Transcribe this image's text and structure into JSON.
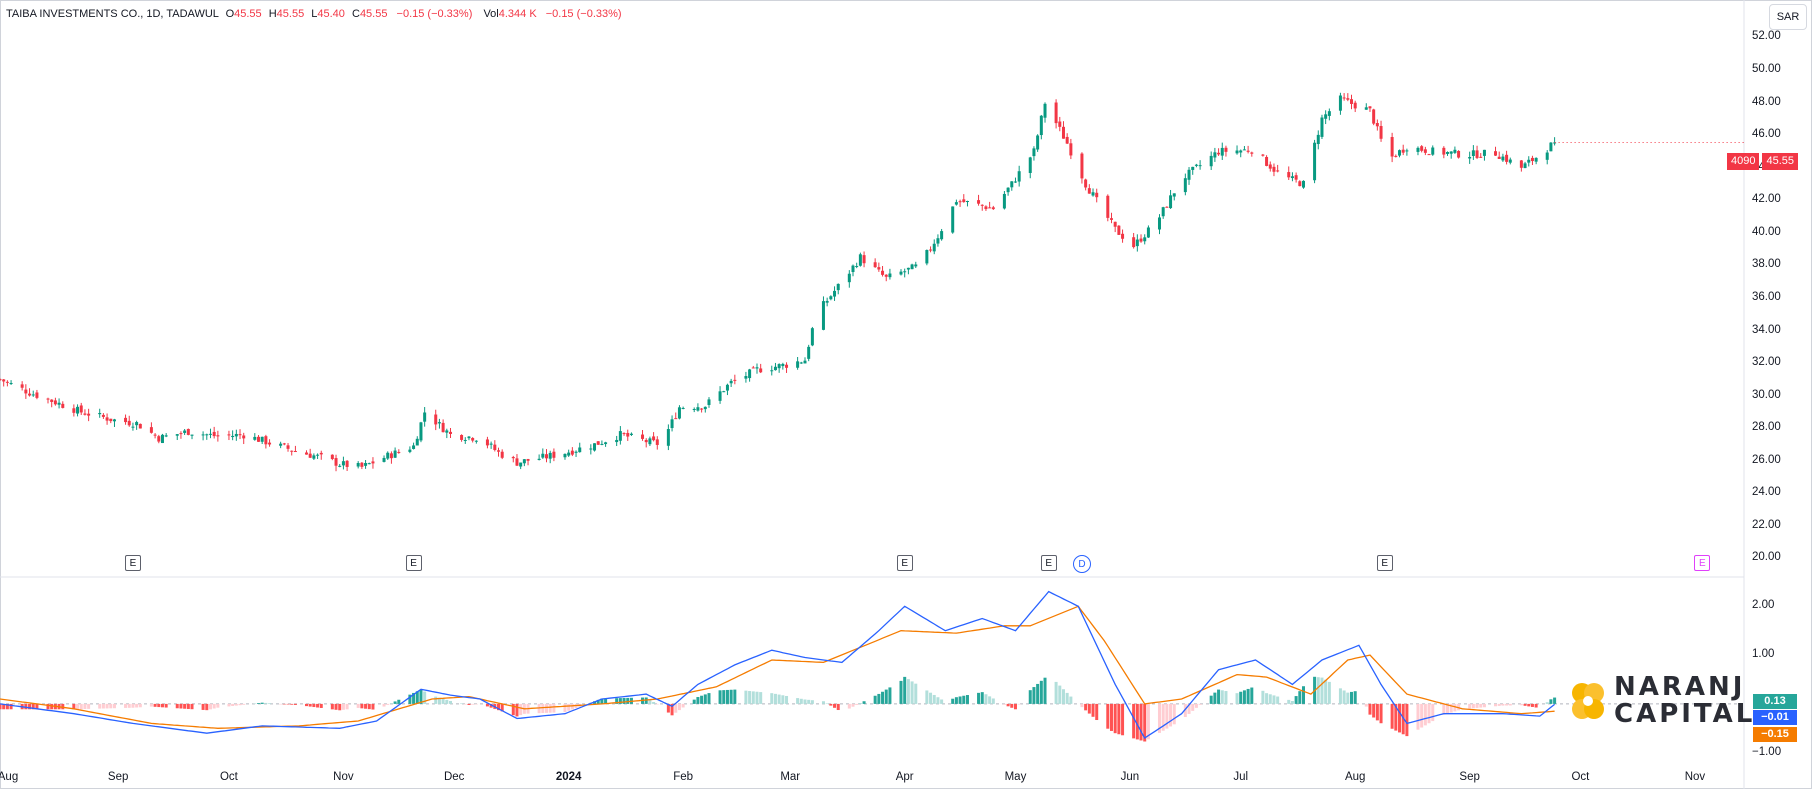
{
  "legend": {
    "name": "TAIBA INVESTMENTS CO., 1D, TADAWUL",
    "open_label": "O",
    "open": "45.55",
    "high_label": "H",
    "high": "45.55",
    "low_label": "L",
    "low": "45.40",
    "close_label": "C",
    "close": "45.55",
    "change": "−0.15 (−0.33%)",
    "vol_label": "Vol",
    "vol": "4.344 K",
    "vol_change": "−0.15 (−0.33%)"
  },
  "currency": "SAR",
  "price_tag": {
    "symbol": "4090",
    "price": "45.55"
  },
  "macd_tags": {
    "hist": "0.13",
    "macd": "−0.01",
    "signal": "−0.15"
  },
  "logo": {
    "line1": "NARANJ",
    "line2": "CAPITAL"
  },
  "events": [
    {
      "label": "E",
      "date": "2023-09-05"
    },
    {
      "label": "E",
      "date": "2023-11-20"
    },
    {
      "label": "E",
      "date": "2024-04-01"
    },
    {
      "label": "E",
      "date": "2024-05-10"
    },
    {
      "label": "D",
      "date": "2024-05-19"
    },
    {
      "label": "E",
      "date": "2024-08-09"
    },
    {
      "label": "E",
      "date": "2024-11-03"
    }
  ],
  "colors": {
    "up": "#089981",
    "down": "#f23645",
    "macd": "#2962ff",
    "signal": "#f57c00",
    "hist_up": "#26a69a",
    "hist_up_weak": "#b2dfdb",
    "hist_down": "#ff5252",
    "hist_down_weak": "#ffcdd2"
  },
  "chart_data": [
    {
      "type": "candlestick",
      "title": "TAIBA INVESTMENTS CO., 1D, TADAWUL",
      "y_ticks": [
        "20.00",
        "22.00",
        "24.00",
        "26.00",
        "28.00",
        "30.00",
        "32.00",
        "34.00",
        "36.00",
        "38.00",
        "40.00",
        "42.00",
        "44.00",
        "46.00",
        "48.00",
        "50.00",
        "52.00"
      ],
      "ylim": [
        19.6,
        54.3
      ],
      "x_ticks": [
        {
          "label": "Aug",
          "date": "2023-08-01"
        },
        {
          "label": "Sep",
          "date": "2023-09-01"
        },
        {
          "label": "Oct",
          "date": "2023-10-01"
        },
        {
          "label": "Nov",
          "date": "2023-11-01"
        },
        {
          "label": "Dec",
          "date": "2023-12-01"
        },
        {
          "label": "2024",
          "date": "2024-01-01",
          "bold": true
        },
        {
          "label": "Feb",
          "date": "2024-02-01"
        },
        {
          "label": "Mar",
          "date": "2024-03-01"
        },
        {
          "label": "Apr",
          "date": "2024-04-01"
        },
        {
          "label": "May",
          "date": "2024-05-01"
        },
        {
          "label": "Jun",
          "date": "2024-06-01"
        },
        {
          "label": "Jul",
          "date": "2024-07-01"
        },
        {
          "label": "Aug",
          "date": "2024-08-01"
        },
        {
          "label": "Sep",
          "date": "2024-09-01"
        },
        {
          "label": "Oct",
          "date": "2024-10-01"
        },
        {
          "label": "Nov",
          "date": "2024-11-01"
        }
      ],
      "xlim": [
        "2023-07-31",
        "2024-11-04"
      ],
      "close_path": [
        [
          "2023-07-31",
          31.0
        ],
        [
          "2023-08-08",
          30.2
        ],
        [
          "2023-08-15",
          29.6
        ],
        [
          "2023-08-22",
          29.0
        ],
        [
          "2023-08-31",
          28.5
        ],
        [
          "2023-09-06",
          28.3
        ],
        [
          "2023-09-12",
          27.4
        ],
        [
          "2023-09-20",
          27.8
        ],
        [
          "2023-09-28",
          27.5
        ],
        [
          "2023-10-05",
          27.6
        ],
        [
          "2023-10-12",
          27.1
        ],
        [
          "2023-10-19",
          26.6
        ],
        [
          "2023-10-26",
          26.2
        ],
        [
          "2023-10-31",
          25.8
        ],
        [
          "2023-11-06",
          25.6
        ],
        [
          "2023-11-13",
          26.3
        ],
        [
          "2023-11-20",
          26.9
        ],
        [
          "2023-11-23",
          29.0
        ],
        [
          "2023-11-30",
          27.6
        ],
        [
          "2023-12-08",
          27.4
        ],
        [
          "2023-12-13",
          26.5
        ],
        [
          "2023-12-18",
          25.9
        ],
        [
          "2023-12-25",
          26.2
        ],
        [
          "2023-12-31",
          26.5
        ],
        [
          "2024-01-08",
          27.0
        ],
        [
          "2024-01-15",
          27.6
        ],
        [
          "2024-01-22",
          27.2
        ],
        [
          "2024-01-26",
          27.0
        ],
        [
          "2024-01-31",
          29.3
        ],
        [
          "2024-02-07",
          29.4
        ],
        [
          "2024-02-14",
          30.8
        ],
        [
          "2024-02-21",
          31.6
        ],
        [
          "2024-02-29",
          31.9
        ],
        [
          "2024-03-05",
          32.2
        ],
        [
          "2024-03-08",
          35.0
        ],
        [
          "2024-03-15",
          37.0
        ],
        [
          "2024-03-20",
          38.5
        ],
        [
          "2024-03-27",
          37.2
        ],
        [
          "2024-04-05",
          38.0
        ],
        [
          "2024-04-10",
          39.8
        ],
        [
          "2024-04-15",
          42.0
        ],
        [
          "2024-04-25",
          41.5
        ],
        [
          "2024-04-30",
          43.0
        ],
        [
          "2024-05-06",
          45.0
        ],
        [
          "2024-05-09",
          48.0
        ],
        [
          "2024-05-15",
          45.5
        ],
        [
          "2024-05-20",
          43.0
        ],
        [
          "2024-05-28",
          40.2
        ],
        [
          "2024-06-02",
          39.2
        ],
        [
          "2024-06-08",
          40.6
        ],
        [
          "2024-06-15",
          43.3
        ],
        [
          "2024-06-25",
          45.0
        ],
        [
          "2024-07-04",
          45.1
        ],
        [
          "2024-07-12",
          43.5
        ],
        [
          "2024-07-18",
          43.0
        ],
        [
          "2024-07-23",
          47.0
        ],
        [
          "2024-07-28",
          48.2
        ],
        [
          "2024-08-05",
          47.5
        ],
        [
          "2024-08-10",
          44.5
        ],
        [
          "2024-08-15",
          45.3
        ],
        [
          "2024-08-22",
          45.0
        ],
        [
          "2024-08-31",
          44.8
        ],
        [
          "2024-09-08",
          44.9
        ],
        [
          "2024-09-15",
          44.0
        ],
        [
          "2024-09-20",
          44.8
        ],
        [
          "2024-09-24",
          45.55
        ]
      ],
      "last_close": 45.55
    },
    {
      "type": "macd",
      "y_ticks": [
        "−1.00",
        "1.00",
        "2.00"
      ],
      "ylim": [
        -1.6,
        2.6
      ],
      "macd_path": [
        [
          "2023-07-31",
          0.0
        ],
        [
          "2023-08-20",
          -0.2
        ],
        [
          "2023-09-05",
          -0.4
        ],
        [
          "2023-09-25",
          -0.6
        ],
        [
          "2023-10-10",
          -0.45
        ],
        [
          "2023-10-31",
          -0.5
        ],
        [
          "2023-11-10",
          -0.35
        ],
        [
          "2023-11-22",
          0.3
        ],
        [
          "2023-11-30",
          0.18
        ],
        [
          "2023-12-08",
          0.1
        ],
        [
          "2023-12-18",
          -0.3
        ],
        [
          "2023-12-31",
          -0.2
        ],
        [
          "2024-01-10",
          0.1
        ],
        [
          "2024-01-22",
          0.2
        ],
        [
          "2024-01-29",
          -0.05
        ],
        [
          "2024-02-05",
          0.4
        ],
        [
          "2024-02-15",
          0.8
        ],
        [
          "2024-02-25",
          1.1
        ],
        [
          "2024-03-05",
          0.95
        ],
        [
          "2024-03-15",
          0.85
        ],
        [
          "2024-03-25",
          1.5
        ],
        [
          "2024-04-01",
          2.0
        ],
        [
          "2024-04-12",
          1.5
        ],
        [
          "2024-04-22",
          1.75
        ],
        [
          "2024-05-01",
          1.5
        ],
        [
          "2024-05-10",
          2.3
        ],
        [
          "2024-05-18",
          2.0
        ],
        [
          "2024-05-28",
          0.4
        ],
        [
          "2024-06-05",
          -0.7
        ],
        [
          "2024-06-15",
          -0.2
        ],
        [
          "2024-06-25",
          0.7
        ],
        [
          "2024-07-05",
          0.9
        ],
        [
          "2024-07-15",
          0.4
        ],
        [
          "2024-07-23",
          0.9
        ],
        [
          "2024-08-02",
          1.2
        ],
        [
          "2024-08-08",
          0.4
        ],
        [
          "2024-08-15",
          -0.4
        ],
        [
          "2024-08-25",
          -0.2
        ],
        [
          "2024-09-10",
          -0.2
        ],
        [
          "2024-09-20",
          -0.25
        ],
        [
          "2024-09-24",
          -0.01
        ]
      ],
      "signal_path": [
        [
          "2023-07-31",
          0.1
        ],
        [
          "2023-08-20",
          -0.1
        ],
        [
          "2023-09-10",
          -0.4
        ],
        [
          "2023-09-28",
          -0.5
        ],
        [
          "2023-10-20",
          -0.45
        ],
        [
          "2023-11-05",
          -0.35
        ],
        [
          "2023-11-25",
          0.1
        ],
        [
          "2023-12-05",
          0.15
        ],
        [
          "2023-12-20",
          -0.1
        ],
        [
          "2024-01-10",
          0.0
        ],
        [
          "2024-01-25",
          0.1
        ],
        [
          "2024-02-10",
          0.35
        ],
        [
          "2024-02-25",
          0.9
        ],
        [
          "2024-03-10",
          0.85
        ],
        [
          "2024-03-31",
          1.5
        ],
        [
          "2024-04-15",
          1.45
        ],
        [
          "2024-04-28",
          1.6
        ],
        [
          "2024-05-05",
          1.6
        ],
        [
          "2024-05-18",
          2.0
        ],
        [
          "2024-05-25",
          1.3
        ],
        [
          "2024-06-05",
          0.0
        ],
        [
          "2024-06-15",
          0.1
        ],
        [
          "2024-06-30",
          0.6
        ],
        [
          "2024-07-08",
          0.55
        ],
        [
          "2024-07-20",
          0.2
        ],
        [
          "2024-07-30",
          0.9
        ],
        [
          "2024-08-05",
          1.0
        ],
        [
          "2024-08-15",
          0.2
        ],
        [
          "2024-08-30",
          -0.1
        ],
        [
          "2024-09-15",
          -0.2
        ],
        [
          "2024-09-24",
          -0.15
        ]
      ],
      "histogram_latest": 0.13,
      "macd_latest": -0.01,
      "signal_latest": -0.15
    }
  ]
}
